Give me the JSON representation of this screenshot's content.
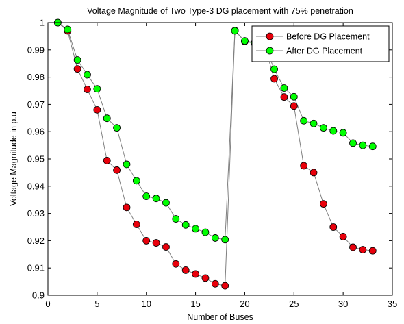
{
  "chart_data": {
    "type": "line",
    "title": "Voltage Magnitude of Two Type-3 DG placement with 75% penetration",
    "xlabel": "Number of Buses",
    "ylabel": "Voltage Magnitude in p.u",
    "xlim": [
      0,
      35
    ],
    "ylim": [
      0.9,
      1.0
    ],
    "xticks": [
      0,
      5,
      10,
      15,
      20,
      25,
      30,
      35
    ],
    "yticks": [
      0.9,
      0.91,
      0.92,
      0.93,
      0.94,
      0.95,
      0.96,
      0.97,
      0.98,
      0.99,
      1.0
    ],
    "xtick_labels": [
      "0",
      "5",
      "10",
      "15",
      "20",
      "25",
      "30",
      "35"
    ],
    "ytick_labels": [
      "0.9",
      "0.91",
      "0.92",
      "0.93",
      "0.94",
      "0.95",
      "0.96",
      "0.97",
      "0.98",
      "0.99",
      "1"
    ],
    "grid": false,
    "legend_position": "top-right",
    "x": [
      1,
      2,
      3,
      4,
      5,
      6,
      7,
      8,
      9,
      10,
      11,
      12,
      13,
      14,
      15,
      16,
      17,
      18,
      19,
      20,
      21,
      22,
      23,
      24,
      25,
      26,
      27,
      28,
      29,
      30,
      31,
      32,
      33
    ],
    "series": [
      {
        "name": "Before DG Placement",
        "color": "#e8000b",
        "line_color": "#808080",
        "values": [
          1.0,
          0.997,
          0.983,
          0.9755,
          0.968,
          0.9494,
          0.9459,
          0.9322,
          0.926,
          0.92,
          0.9192,
          0.9177,
          0.9115,
          0.9092,
          0.9078,
          0.9063,
          0.9042,
          0.9035,
          0.9971,
          0.9931,
          0.9924,
          0.9917,
          0.9794,
          0.9727,
          0.9694,
          0.9475,
          0.945,
          0.9335,
          0.925,
          0.9215,
          0.9176,
          0.9167,
          0.9163
        ]
      },
      {
        "name": "After DG Placement",
        "color": "#00ff00",
        "line_color": "#808080",
        "values": [
          1.0,
          0.9975,
          0.9863,
          0.9809,
          0.9757,
          0.9649,
          0.9614,
          0.948,
          0.942,
          0.9363,
          0.9355,
          0.9339,
          0.928,
          0.9258,
          0.9244,
          0.9231,
          0.921,
          0.9204,
          0.997,
          0.9933,
          0.9926,
          0.9919,
          0.9829,
          0.976,
          0.9728,
          0.964,
          0.963,
          0.9614,
          0.9603,
          0.9596,
          0.9558,
          0.955,
          0.9546
        ]
      }
    ]
  }
}
